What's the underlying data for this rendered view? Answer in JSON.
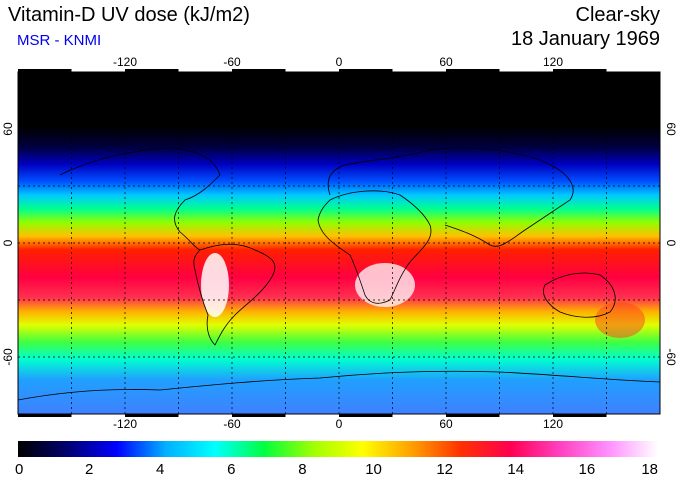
{
  "header": {
    "title": "Vitamin-D UV dose (kJ/m2)",
    "subtitle": "MSR - KNMI",
    "condition": "Clear-sky",
    "date": "18 January 1969"
  },
  "map": {
    "lon_ticks": [
      "-120",
      "-60",
      "0",
      "60",
      "120"
    ],
    "lat_ticks": [
      "60",
      "0",
      "-60"
    ],
    "lon_values": [
      -120,
      -60,
      0,
      60,
      120
    ],
    "lat_values": [
      60,
      0,
      -60
    ],
    "lat_range": [
      -90,
      90
    ],
    "lon_range": [
      -180,
      180
    ]
  },
  "colorbar": {
    "min": 0,
    "max": 18,
    "tick_labels": [
      "0",
      "2",
      "4",
      "6",
      "8",
      "10",
      "12",
      "14",
      "16",
      "18"
    ],
    "colors": [
      "#000000",
      "#000070",
      "#0000ff",
      "#00b0ff",
      "#00ffff",
      "#00ff40",
      "#a0ff00",
      "#ffff00",
      "#ffa000",
      "#ff3000",
      "#ff0050",
      "#ff40c0",
      "#ff90ff",
      "#ffffff"
    ]
  },
  "colors": {
    "subtitle": "#0000ee"
  }
}
